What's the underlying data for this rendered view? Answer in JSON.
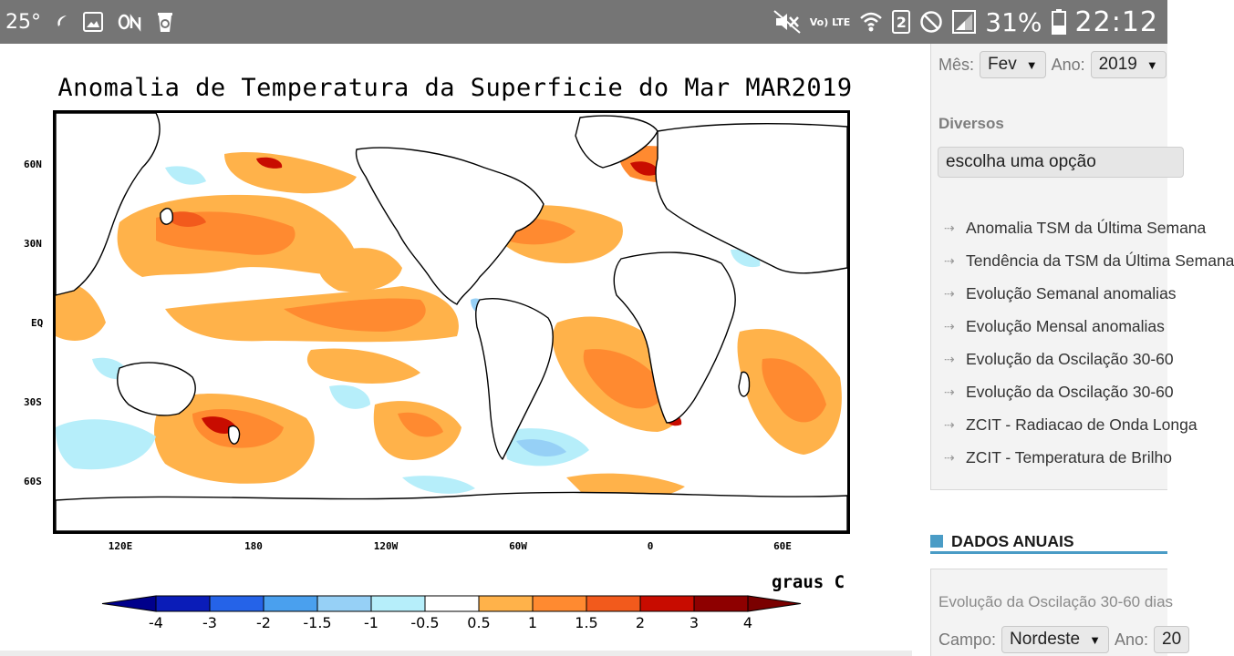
{
  "status_bar": {
    "temperature": "25°",
    "left_icons": [
      "leaf-icon",
      "image-icon",
      "on-icon",
      "recycle-icon"
    ],
    "network": "Vo) LTE",
    "sim_slot": "2",
    "battery_percent": "31%",
    "time": "22:12"
  },
  "figure": {
    "title": "Anomalia de Temperatura da Superficie do Mar MAR2019",
    "y_ticks": [
      "60N",
      "30N",
      "EQ",
      "30S",
      "60S"
    ],
    "x_ticks": [
      "120E",
      "180",
      "120W",
      "60W",
      "0",
      "60E"
    ],
    "units": "graus C",
    "colorbar": {
      "labels": [
        "-4",
        "-3",
        "-2",
        "-1.5",
        "-1",
        "-0.5",
        "0.5",
        "1",
        "1.5",
        "2",
        "3",
        "4"
      ],
      "colors": [
        "#00008b",
        "#0a1cb8",
        "#2563e8",
        "#4aa0ee",
        "#96d0f6",
        "#b6eefa",
        "#ffffff",
        "#ffb24a",
        "#ff8a30",
        "#f25a1c",
        "#c80c00",
        "#8e0000",
        "#7a0000"
      ]
    },
    "colors": {
      "warm_light": "#ffb24a",
      "warm_mid": "#ff8a30",
      "warm_strong": "#f25a1c",
      "hot": "#c80c00",
      "cool_light": "#b6eefa",
      "cool_mid": "#96d0f6"
    }
  },
  "sidebar": {
    "month_label": "Mês:",
    "month_value": "Fev",
    "year_label": "Ano:",
    "year_value": "2019",
    "diversos_label": "Diversos",
    "diversos_placeholder": "escolha uma opção",
    "links": [
      "Anomalia TSM da Última Semana",
      "Tendência da TSM da Última Semana",
      "Evolução Semanal anomalias",
      "Evolução Mensal anomalias",
      "Evolução da Oscilação 30-60",
      "Evolução da Oscilação 30-60",
      "ZCIT - Radiacao de Onda Longa",
      "ZCIT - Temperatura de Brilho"
    ],
    "annual_title": "DADOS ANUAIS",
    "annual_text": "Evolução da Oscilação 30-60 dias",
    "campo_label": "Campo:",
    "campo_value": "Nordeste",
    "annual_year_label": "Ano:",
    "annual_year_value": "20"
  }
}
